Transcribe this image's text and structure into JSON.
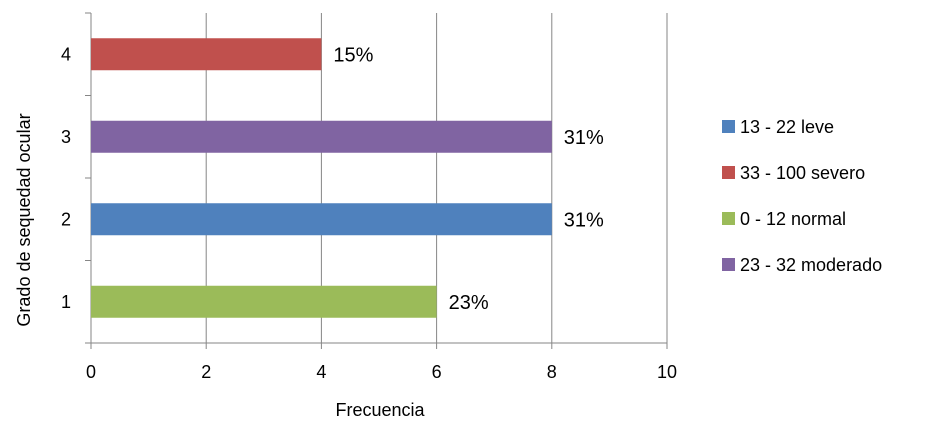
{
  "chart_data": {
    "type": "bar",
    "orientation": "horizontal",
    "xlabel": "Frecuencia",
    "ylabel": "Grado de sequedad ocular",
    "xlim": [
      0,
      10
    ],
    "xticks": [
      0,
      2,
      4,
      6,
      8,
      10
    ],
    "grid": "vertical",
    "legend_position": "right",
    "categories": [
      "1",
      "2",
      "3",
      "4"
    ],
    "bars": [
      {
        "category": "1",
        "value": 6,
        "label": "23%",
        "series": "0 - 12 normal",
        "color": "#9BBB59"
      },
      {
        "category": "2",
        "value": 8,
        "label": "31%",
        "series": "13 - 22 leve",
        "color": "#4F81BD"
      },
      {
        "category": "3",
        "value": 8,
        "label": "31%",
        "series": "23 - 32 moderado",
        "color": "#8064A2"
      },
      {
        "category": "4",
        "value": 4,
        "label": "15%",
        "series": "33 - 100 severo",
        "color": "#C0504D"
      }
    ],
    "legend": [
      {
        "name": "13 - 22 leve",
        "color": "#4F81BD"
      },
      {
        "name": "33 - 100 severo",
        "color": "#C0504D"
      },
      {
        "name": "0 - 12 normal",
        "color": "#9BBB59"
      },
      {
        "name": "23 - 32 moderado",
        "color": "#8064A2"
      }
    ]
  }
}
